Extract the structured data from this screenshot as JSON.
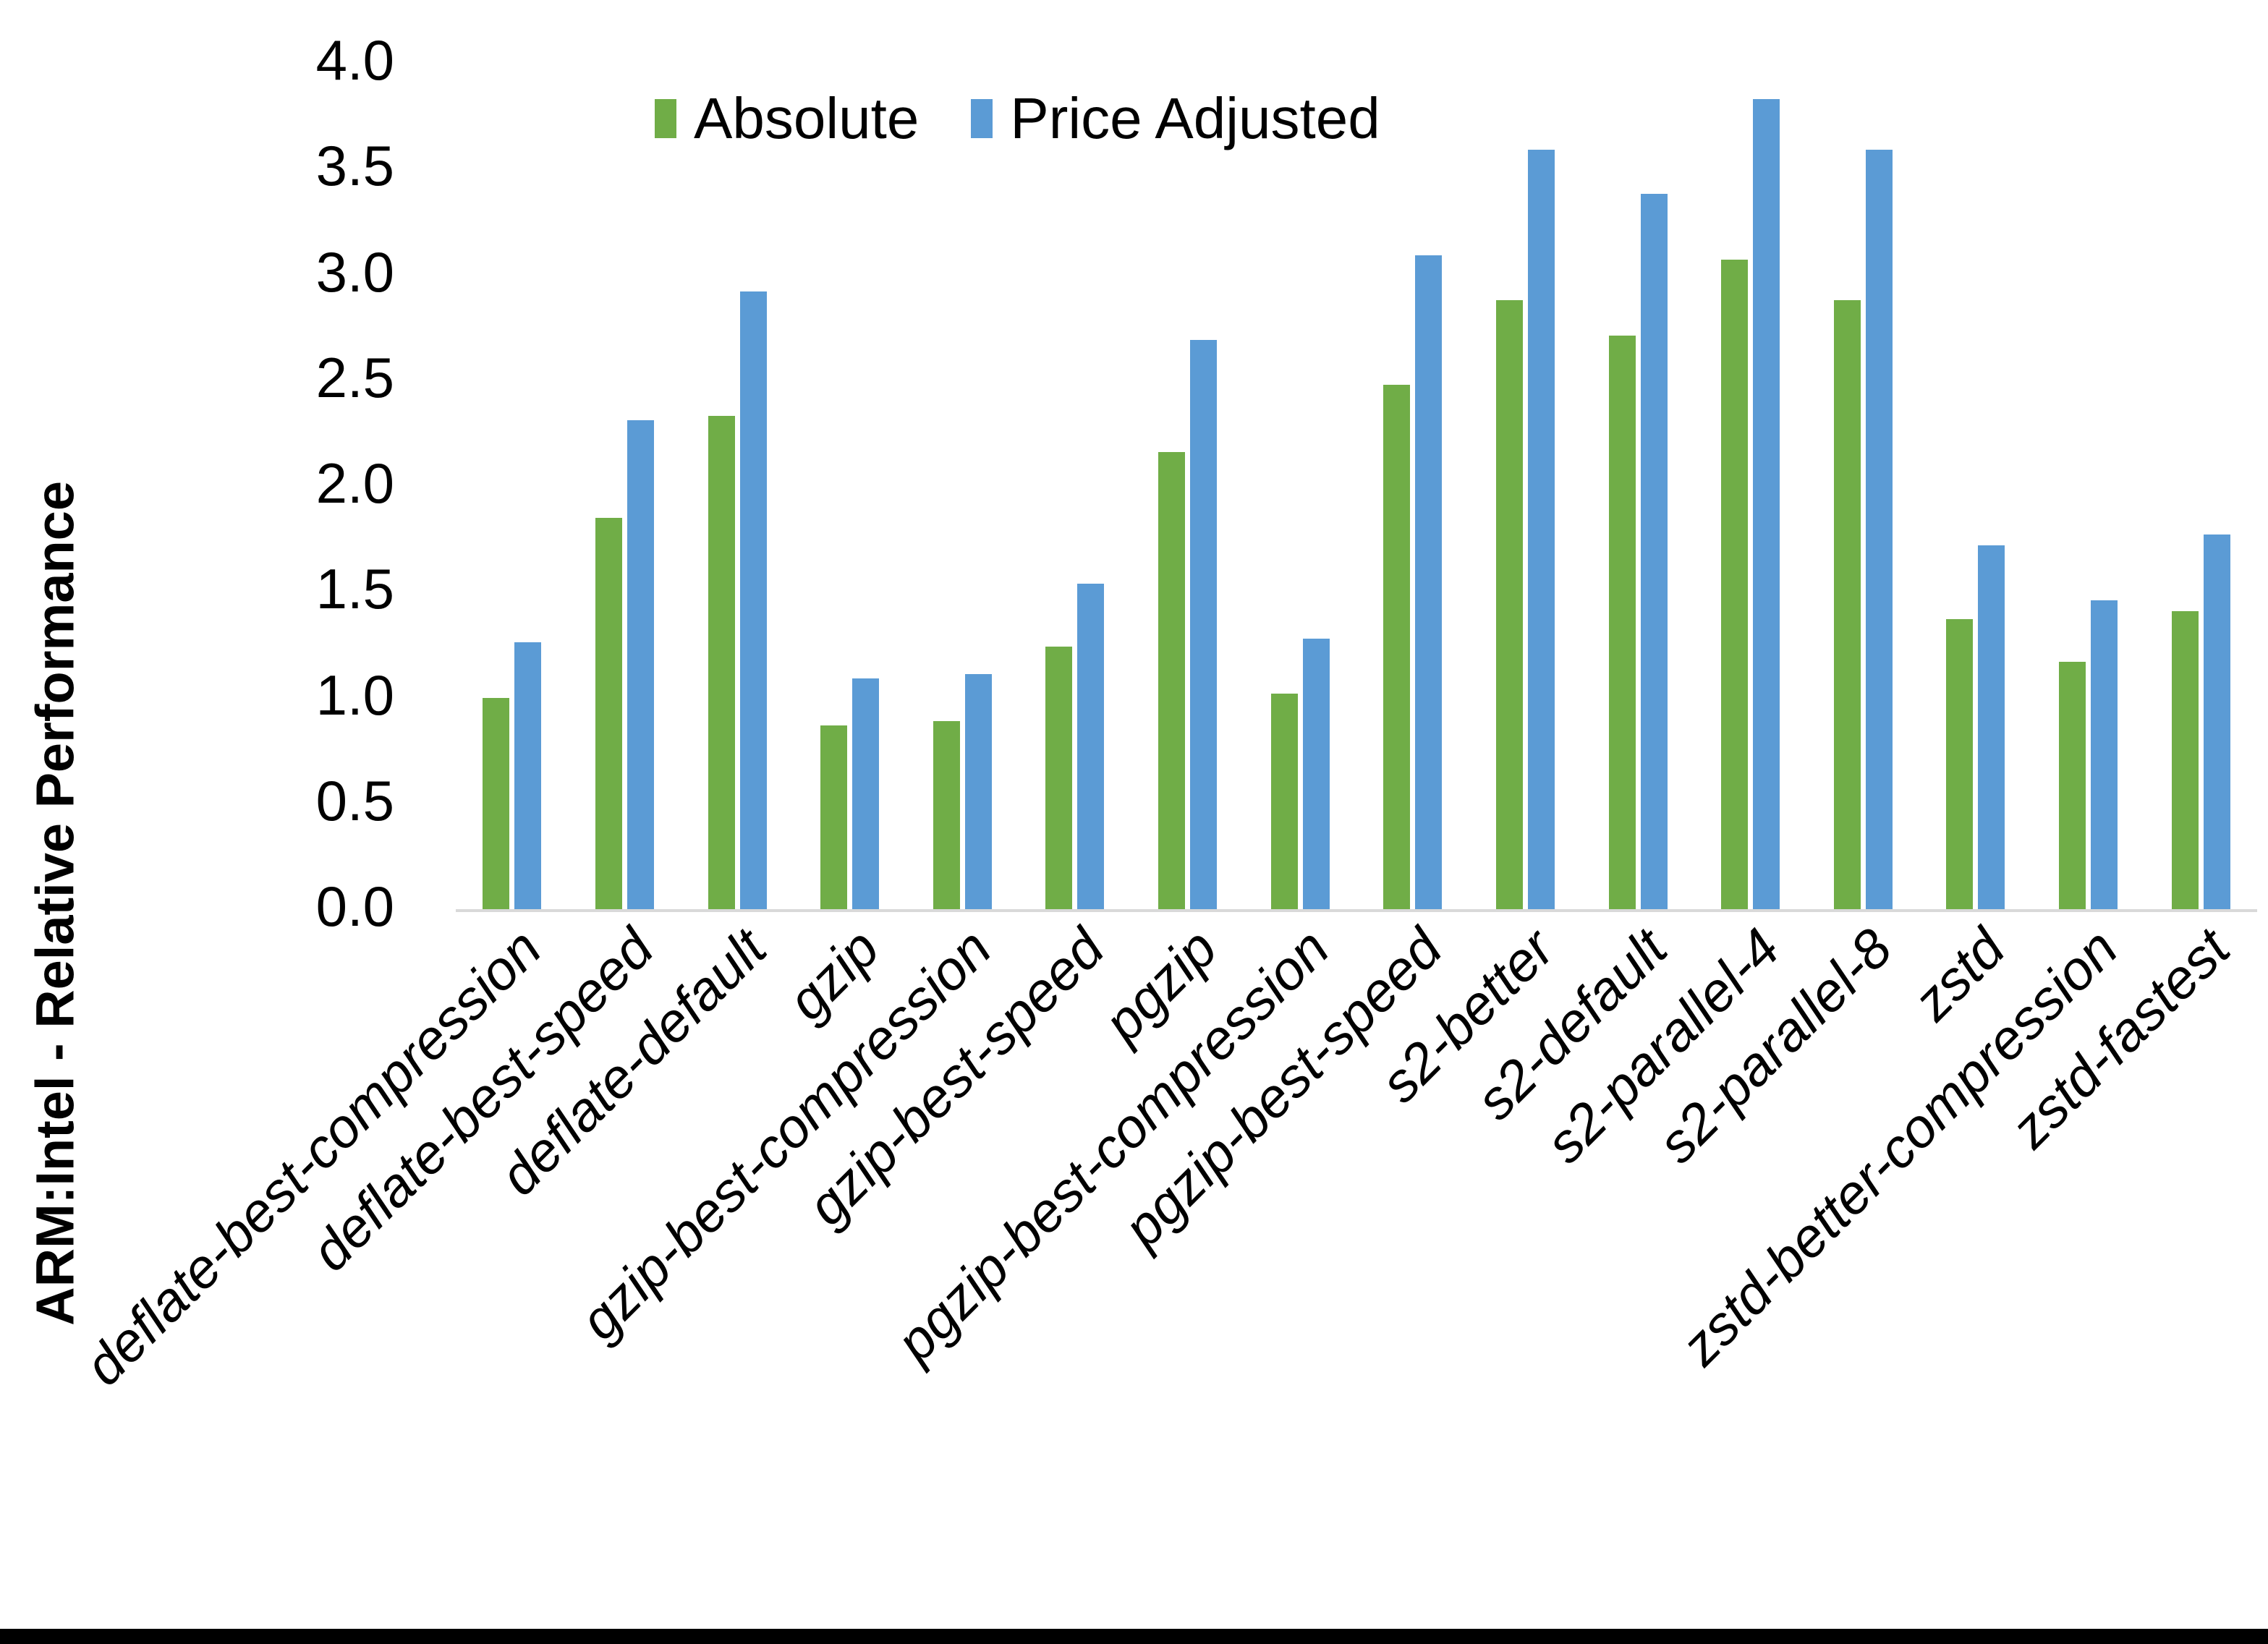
{
  "figure": {
    "background": "#ffffff",
    "bottom_border_color": "#000000"
  },
  "chart_data": {
    "type": "bar",
    "title": "",
    "xlabel": "",
    "ylabel": "ARM:Intel - Relative Performance",
    "ylim": [
      0.0,
      4.0
    ],
    "ytick_step": 0.5,
    "ytick_labels_top_to_bottom": [
      "4.0",
      "3.5",
      "3.0",
      "2.5",
      "2.0",
      "1.5",
      "1.0",
      "0.5",
      "0.0"
    ],
    "grid": false,
    "legend_position": "top-center",
    "axis_line_color": "#d9d9d9",
    "categories": [
      "deflate-best-compression",
      "deflate-best-speed",
      "deflate-default",
      "gzip",
      "gzip-best-compression",
      "gzip-best-speed",
      "pgzip",
      "pgzip-best-compression",
      "pgzip-best-speed",
      "s2-better",
      "s2-default",
      "s2-parallel-4",
      "s2-parallel-8",
      "zstd",
      "zstd-better-compression",
      "zstd-fastest"
    ],
    "series": [
      {
        "name": "Absolute",
        "color": "#70AD47",
        "values": [
          1.0,
          1.85,
          2.33,
          0.87,
          0.89,
          1.24,
          2.16,
          1.02,
          2.48,
          2.88,
          2.71,
          3.07,
          2.88,
          1.37,
          1.17,
          1.41
        ]
      },
      {
        "name": "Price Adjusted",
        "color": "#5B9BD5",
        "values": [
          1.26,
          2.31,
          2.92,
          1.09,
          1.11,
          1.54,
          2.69,
          1.28,
          3.09,
          3.59,
          3.38,
          3.83,
          3.59,
          1.72,
          1.46,
          1.77
        ]
      }
    ]
  }
}
